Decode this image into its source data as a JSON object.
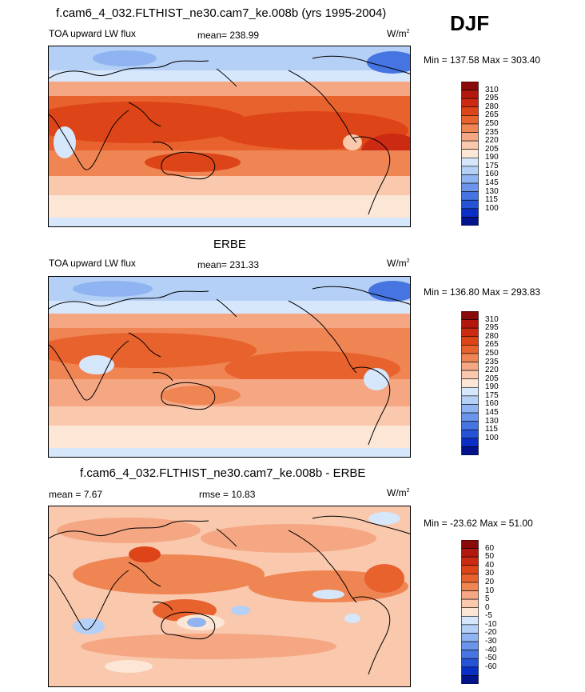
{
  "season": "DJF",
  "units_base": "W/m",
  "units_exp": "2",
  "panels": [
    {
      "title": "f.cam6_4_032.FLTHIST_ne30.cam7_ke.008b (yrs 1995-2004)",
      "left_label": "TOA upward LW flux",
      "center_label": "mean= 238.99",
      "minmax": "Min = 137.58 Max = 303.40"
    },
    {
      "title": "ERBE",
      "left_label": "TOA upward LW flux",
      "center_label": "mean= 231.33",
      "minmax": "Min = 136.80 Max = 293.83"
    },
    {
      "title": "f.cam6_4_032.FLTHIST_ne30.cam7_ke.008b - ERBE",
      "left_label": "mean =   7.67",
      "center_label": "rmse =  10.83",
      "minmax": "Min = -23.62 Max =  51.00"
    }
  ],
  "colorbars": {
    "absolute": {
      "labels": [
        "310",
        "295",
        "280",
        "265",
        "250",
        "235",
        "220",
        "205",
        "190",
        "175",
        "160",
        "145",
        "130",
        "115",
        "100"
      ],
      "colors": [
        "#8a0a0a",
        "#b3180f",
        "#cc2a12",
        "#dd4418",
        "#e8622e",
        "#ef8553",
        "#f5a783",
        "#f9c8ad",
        "#fce6d6",
        "#d6e6fb",
        "#b5d0f6",
        "#8fb4f1",
        "#6a95ea",
        "#4675e2",
        "#2553d5",
        "#0a2fc4",
        "#03138c"
      ]
    },
    "difference": {
      "labels": [
        "60",
        "50",
        "40",
        "30",
        "20",
        "10",
        "5",
        "0",
        "-5",
        "-10",
        "-20",
        "-30",
        "-40",
        "-50",
        "-60"
      ],
      "colors": [
        "#8a0a0a",
        "#b3180f",
        "#cc2a12",
        "#dd4418",
        "#e8622e",
        "#ef8553",
        "#f5a783",
        "#f9c8ad",
        "#fce6d6",
        "#d6e6fb",
        "#b5d0f6",
        "#8fb4f1",
        "#6a95ea",
        "#4675e2",
        "#2553d5",
        "#0a2fc4",
        "#03138c"
      ]
    }
  },
  "chart_data": [
    {
      "type": "heatmap",
      "title": "f.cam6_4_032.FLTHIST_ne30.cam7_ke.008b (yrs 1995-2004)",
      "subtitle": "TOA upward LW flux",
      "mean": 238.99,
      "min": 137.58,
      "max": 303.4,
      "units": "W/m2",
      "levels": [
        100,
        115,
        130,
        145,
        160,
        175,
        190,
        205,
        220,
        235,
        250,
        265,
        280,
        295,
        310
      ],
      "grid": false,
      "projection": "cylindrical equidistant, Pacific-centered"
    },
    {
      "type": "heatmap",
      "title": "ERBE",
      "subtitle": "TOA upward LW flux",
      "mean": 231.33,
      "min": 136.8,
      "max": 293.83,
      "units": "W/m2",
      "levels": [
        100,
        115,
        130,
        145,
        160,
        175,
        190,
        205,
        220,
        235,
        250,
        265,
        280,
        295,
        310
      ],
      "grid": false,
      "projection": "cylindrical equidistant, Pacific-centered"
    },
    {
      "type": "heatmap",
      "title": "f.cam6_4_032.FLTHIST_ne30.cam7_ke.008b - ERBE",
      "mean": 7.67,
      "rmse": 10.83,
      "min": -23.62,
      "max": 51.0,
      "units": "W/m2",
      "levels": [
        -60,
        -50,
        -40,
        -30,
        -20,
        -10,
        -5,
        0,
        5,
        10,
        20,
        30,
        40,
        50,
        60
      ],
      "grid": false,
      "projection": "cylindrical equidistant, Pacific-centered"
    }
  ]
}
